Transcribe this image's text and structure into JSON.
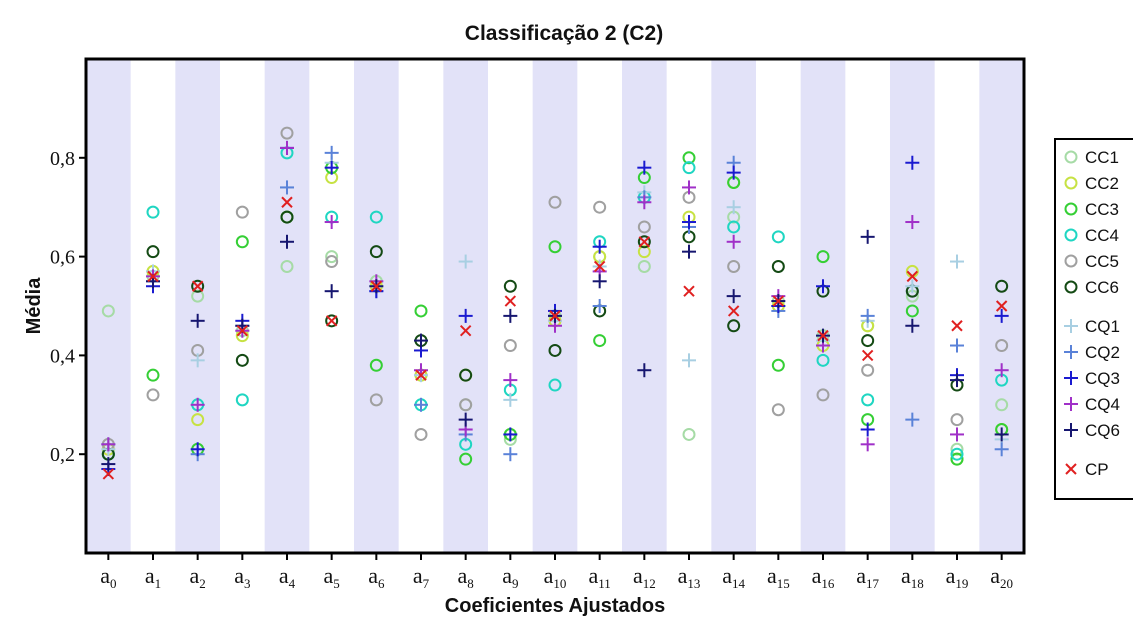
{
  "chart_data": {
    "type": "scatter",
    "title": "Classificação 2 (C2)",
    "xlabel": "Coeficientes Ajustados",
    "ylabel": "Média",
    "ylim": [
      0.0,
      1.0
    ],
    "yticks": [
      0.2,
      0.4,
      0.6,
      0.8
    ],
    "ytick_labels": [
      "0,2",
      "0,4",
      "0,6",
      "0,8"
    ],
    "categories": [
      "a0",
      "a1",
      "a2",
      "a3",
      "a4",
      "a5",
      "a6",
      "a7",
      "a8",
      "a9",
      "a10",
      "a11",
      "a12",
      "a13",
      "a14",
      "a15",
      "a16",
      "a17",
      "a18",
      "a19",
      "a20"
    ],
    "category_base": "a",
    "category_subs": [
      "0",
      "1",
      "2",
      "3",
      "4",
      "5",
      "6",
      "7",
      "8",
      "9",
      "10",
      "11",
      "12",
      "13",
      "14",
      "15",
      "16",
      "17",
      "18",
      "19",
      "20"
    ],
    "band_color": "#e2e2f8",
    "legend_position": "right",
    "series": [
      {
        "name": "CC1",
        "marker": "circle",
        "color": "#a6dba6",
        "values": [
          0.49,
          0.56,
          0.52,
          0.45,
          0.58,
          0.6,
          0.55,
          0.36,
          0.3,
          0.23,
          0.48,
          0.6,
          0.58,
          0.24,
          0.68,
          0.51,
          0.44,
          0.46,
          0.52,
          0.21,
          0.3
        ]
      },
      {
        "name": "CC2",
        "marker": "circle",
        "color": "#c7e243",
        "values": [
          0.21,
          0.57,
          0.27,
          0.44,
          0.68,
          0.76,
          0.54,
          0.36,
          0.36,
          0.24,
          0.47,
          0.6,
          0.61,
          0.68,
          0.75,
          0.5,
          0.42,
          0.46,
          0.57,
          0.19,
          0.25
        ]
      },
      {
        "name": "CC3",
        "marker": "circle",
        "color": "#35cf35",
        "values": [
          0.2,
          0.36,
          0.21,
          0.63,
          0.68,
          0.78,
          0.38,
          0.49,
          0.19,
          0.24,
          0.62,
          0.43,
          0.76,
          0.8,
          0.75,
          0.38,
          0.6,
          0.27,
          0.49,
          0.19,
          0.25
        ]
      },
      {
        "name": "CC4",
        "marker": "circle",
        "color": "#1fd6c2",
        "values": [
          0.2,
          0.69,
          0.3,
          0.31,
          0.81,
          0.68,
          0.68,
          0.3,
          0.22,
          0.33,
          0.34,
          0.63,
          0.72,
          0.78,
          0.66,
          0.64,
          0.39,
          0.31,
          0.53,
          0.2,
          0.35
        ]
      },
      {
        "name": "CC5",
        "marker": "circle",
        "color": "#a0a0a0",
        "values": [
          0.22,
          0.32,
          0.41,
          0.69,
          0.85,
          0.59,
          0.31,
          0.24,
          0.3,
          0.42,
          0.71,
          0.7,
          0.66,
          0.72,
          0.58,
          0.29,
          0.32,
          0.37,
          0.53,
          0.27,
          0.42
        ]
      },
      {
        "name": "CC6",
        "marker": "circle",
        "color": "#144a14",
        "values": [
          0.2,
          0.61,
          0.54,
          0.39,
          0.68,
          0.47,
          0.61,
          0.43,
          0.36,
          0.54,
          0.41,
          0.49,
          0.63,
          0.64,
          0.46,
          0.58,
          0.53,
          0.43,
          0.53,
          0.34,
          0.54
        ]
      },
      {
        "name": "CQ1",
        "marker": "plus",
        "color": "#a8cfe2",
        "values": [
          0.21,
          0.57,
          0.39,
          0.45,
          0.74,
          0.79,
          0.54,
          0.36,
          0.59,
          0.31,
          0.47,
          0.58,
          0.73,
          0.39,
          0.7,
          0.5,
          0.43,
          0.47,
          0.54,
          0.59,
          0.23
        ]
      },
      {
        "name": "CQ2",
        "marker": "plus",
        "color": "#5a82d8",
        "values": [
          0.22,
          0.55,
          0.2,
          0.46,
          0.74,
          0.81,
          0.53,
          0.3,
          0.24,
          0.2,
          0.48,
          0.5,
          0.72,
          0.66,
          0.79,
          0.49,
          0.42,
          0.48,
          0.27,
          0.42,
          0.21
        ]
      },
      {
        "name": "CQ3",
        "marker": "plus",
        "color": "#1a1ad0",
        "values": [
          0.17,
          0.54,
          0.21,
          0.47,
          0.82,
          0.78,
          0.53,
          0.41,
          0.48,
          0.24,
          0.49,
          0.62,
          0.78,
          0.67,
          0.77,
          0.5,
          0.54,
          0.25,
          0.79,
          0.36,
          0.48
        ]
      },
      {
        "name": "CQ4",
        "marker": "plus",
        "color": "#a030c8",
        "values": [
          0.22,
          0.56,
          0.3,
          0.45,
          0.82,
          0.67,
          0.55,
          0.37,
          0.25,
          0.35,
          0.46,
          0.57,
          0.71,
          0.74,
          0.63,
          0.52,
          0.42,
          0.22,
          0.67,
          0.24,
          0.37
        ]
      },
      {
        "name": "CQ6",
        "marker": "plus",
        "color": "#161670",
        "values": [
          0.18,
          0.55,
          0.47,
          0.46,
          0.63,
          0.53,
          0.54,
          0.43,
          0.27,
          0.48,
          0.48,
          0.55,
          0.37,
          0.61,
          0.52,
          0.51,
          0.44,
          0.64,
          0.46,
          0.35,
          0.24
        ]
      },
      {
        "name": "CP",
        "marker": "x",
        "color": "#e02020",
        "values": [
          0.16,
          0.56,
          0.54,
          0.45,
          0.71,
          0.47,
          0.54,
          0.36,
          0.45,
          0.51,
          0.48,
          0.58,
          0.63,
          0.53,
          0.49,
          0.51,
          0.44,
          0.4,
          0.56,
          0.46,
          0.5
        ]
      }
    ]
  }
}
